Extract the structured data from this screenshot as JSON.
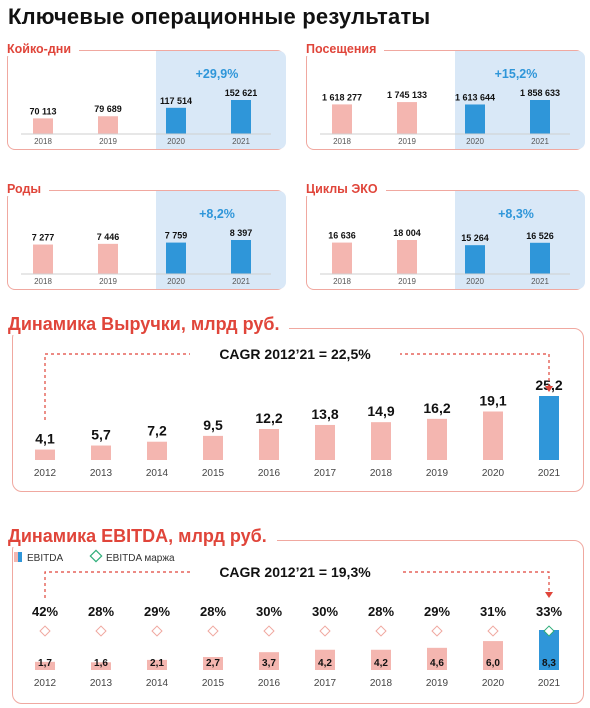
{
  "title": "Ключевые операционные результаты",
  "colors": {
    "accent": "#e0453a",
    "bar_pink": "#f4b6b0",
    "bar_blue": "#2f96d9",
    "highlight": "#d9e8f7",
    "frame": "#f0a8a0"
  },
  "chart_data": [
    {
      "type": "bar",
      "title": "Койко-дни",
      "categories": [
        "2018",
        "2019",
        "2020",
        "2021"
      ],
      "values": [
        70113,
        79689,
        117514,
        152621
      ],
      "labels": [
        "70 113",
        "79 689",
        "117 514",
        "152 621"
      ],
      "growth_label": "+29,9%"
    },
    {
      "type": "bar",
      "title": "Посещения",
      "categories": [
        "2018",
        "2019",
        "2020",
        "2021"
      ],
      "values": [
        1618277,
        1745133,
        1613644,
        1858633
      ],
      "labels": [
        "1 618 277",
        "1 745 133",
        "1 613 644",
        "1 858 633"
      ],
      "growth_label": "+15,2%"
    },
    {
      "type": "bar",
      "title": "Роды",
      "categories": [
        "2018",
        "2019",
        "2020",
        "2021"
      ],
      "values": [
        7277,
        7446,
        7759,
        8397
      ],
      "labels": [
        "7 277",
        "7 446",
        "7 759",
        "8 397"
      ],
      "growth_label": "+8,2%"
    },
    {
      "type": "bar",
      "title": "Циклы ЭКО",
      "categories": [
        "2018",
        "2019",
        "2020",
        "2021"
      ],
      "values": [
        16636,
        18004,
        15264,
        16526
      ],
      "labels": [
        "16 636",
        "18 004",
        "15 264",
        "16 526"
      ],
      "growth_label": "+8,3%"
    },
    {
      "type": "bar",
      "title": "Динамика Выручки, млрд руб.",
      "cagr_label": "CAGR 2012’21 = 22,5%",
      "categories": [
        "2012",
        "2013",
        "2014",
        "2015",
        "2016",
        "2017",
        "2018",
        "2019",
        "2020",
        "2021"
      ],
      "values": [
        4.1,
        5.7,
        7.2,
        9.5,
        12.2,
        13.8,
        14.9,
        16.2,
        19.1,
        25.2
      ],
      "labels": [
        "4,1",
        "5,7",
        "7,2",
        "9,5",
        "12,2",
        "13,8",
        "14,9",
        "16,2",
        "19,1",
        "25,2"
      ]
    },
    {
      "type": "bar",
      "title": "Динамика EBITDA, млрд руб.",
      "cagr_label": "CAGR 2012’21 = 19,3%",
      "legend": [
        "EBITDA",
        "EBITDA маржа"
      ],
      "categories": [
        "2012",
        "2013",
        "2014",
        "2015",
        "2016",
        "2017",
        "2018",
        "2019",
        "2020",
        "2021"
      ],
      "values": [
        1.7,
        1.6,
        2.1,
        2.7,
        3.7,
        4.2,
        4.2,
        4.6,
        6.0,
        8.3
      ],
      "labels": [
        "1,7",
        "1,6",
        "2,1",
        "2,7",
        "3,7",
        "4,2",
        "4,2",
        "4,6",
        "6,0",
        "8,3"
      ],
      "margin_values": [
        42,
        28,
        29,
        28,
        30,
        30,
        28,
        29,
        31,
        33
      ],
      "margin_labels": [
        "42%",
        "28%",
        "29%",
        "28%",
        "30%",
        "30%",
        "28%",
        "29%",
        "31%",
        "33%"
      ]
    }
  ]
}
